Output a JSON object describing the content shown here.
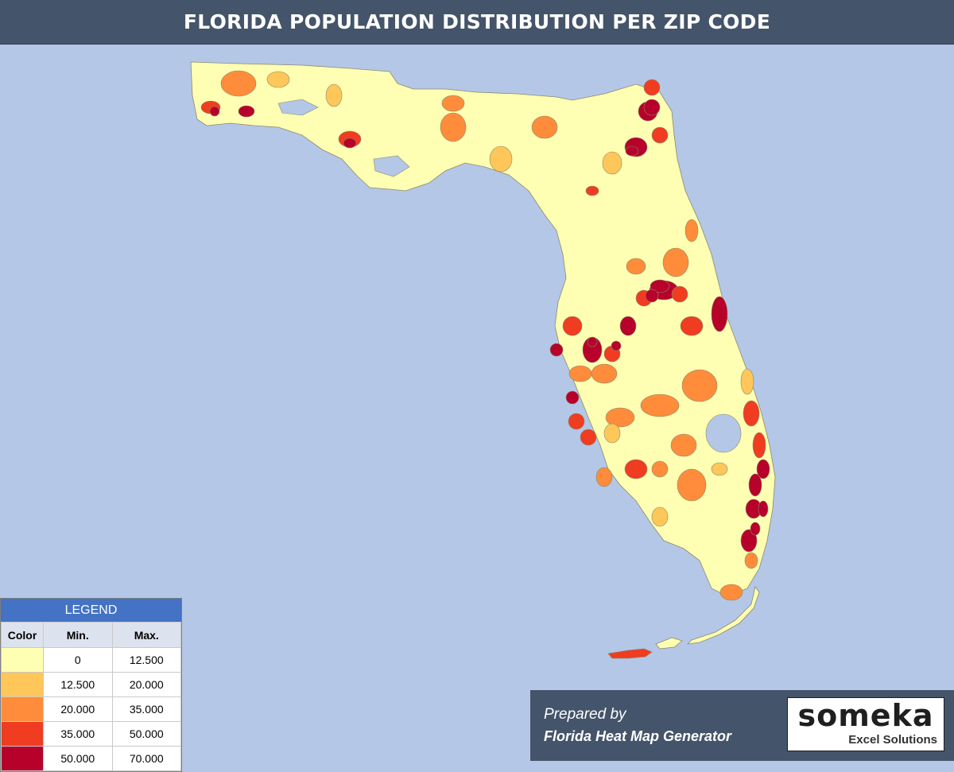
{
  "title": "FLORIDA POPULATION DISTRIBUTION PER ZIP CODE",
  "colors": {
    "background": "#b4c7e7",
    "header": "#44546a",
    "legend_header": "#4472c4",
    "tier1": "#ffffb3",
    "tier2": "#ffc65a",
    "tier3": "#ff8c3a",
    "tier4": "#f03c20",
    "tier5": "#b7002a"
  },
  "legend": {
    "title": "LEGEND",
    "headers": {
      "color": "Color",
      "min": "Min.",
      "max": "Max."
    },
    "rows": [
      {
        "color": "#ffffb3",
        "min": "0",
        "max": "12.500"
      },
      {
        "color": "#ffc65a",
        "min": "12.500",
        "max": "20.000"
      },
      {
        "color": "#ff8c3a",
        "min": "20.000",
        "max": "35.000"
      },
      {
        "color": "#f03c20",
        "min": "35.000",
        "max": "50.000"
      },
      {
        "color": "#b7002a",
        "min": "50.000",
        "max": "70.000"
      }
    ]
  },
  "credit": {
    "line1": "Prepared by",
    "line2": "Florida Heat Map Generator",
    "logo_text": "someka",
    "logo_tagline": "Excel Solutions"
  }
}
